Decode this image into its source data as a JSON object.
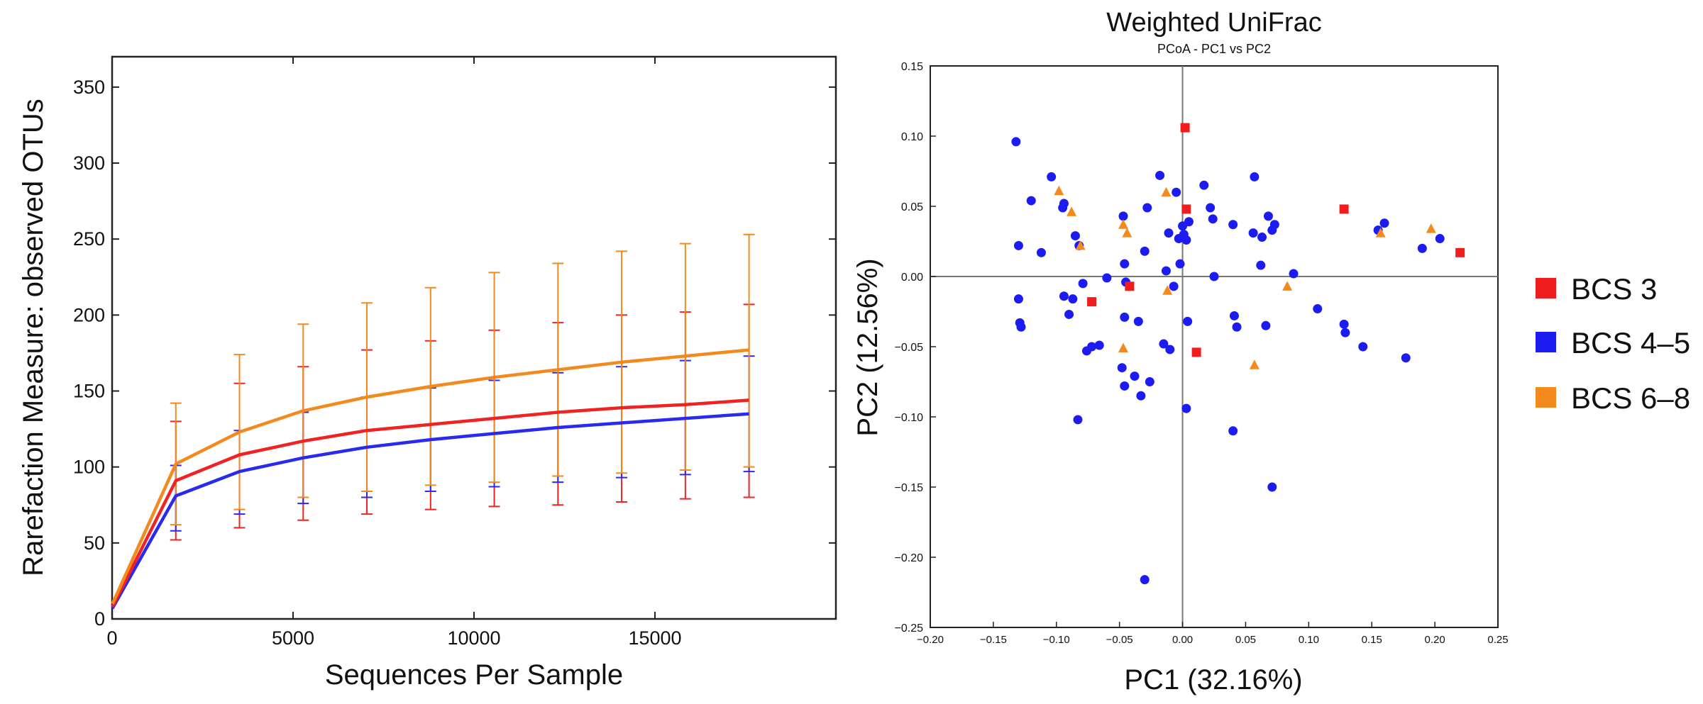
{
  "chart_data": [
    {
      "type": "line",
      "title": "",
      "xlabel": "Sequences Per Sample",
      "ylabel": "Rarefaction Measure: observed OTUs",
      "xlim": [
        0,
        20000
      ],
      "ylim": [
        0,
        370
      ],
      "xticks": [
        0,
        5000,
        10000,
        15000
      ],
      "yticks": [
        0,
        50,
        100,
        150,
        200,
        250,
        300,
        350
      ],
      "x": [
        10,
        1760,
        3520,
        5280,
        7040,
        8800,
        10560,
        12320,
        14080,
        15840,
        17600
      ],
      "series": [
        {
          "name": "BCS 6–8",
          "color": "#f28a1e",
          "values": [
            10,
            102,
            123,
            137,
            146,
            153,
            159,
            164,
            169,
            173,
            177
          ],
          "error_upper": [
            10,
            142,
            174,
            194,
            208,
            218,
            228,
            234,
            242,
            247,
            253
          ],
          "error_lower": [
            10,
            62,
            72,
            80,
            84,
            88,
            90,
            94,
            96,
            98,
            100
          ]
        },
        {
          "name": "BCS 3",
          "color": "#ef2323",
          "values": [
            8,
            91,
            108,
            117,
            124,
            128,
            132,
            136,
            139,
            141,
            144
          ],
          "error_upper": [
            8,
            130,
            155,
            166,
            177,
            183,
            190,
            195,
            200,
            202,
            207
          ],
          "error_lower": [
            8,
            52,
            60,
            65,
            69,
            72,
            74,
            75,
            77,
            79,
            80
          ]
        },
        {
          "name": "BCS 4–5",
          "color": "#2a2aee",
          "values": [
            7,
            81,
            97,
            106,
            113,
            118,
            122,
            126,
            129,
            132,
            135
          ],
          "error_upper": [
            7,
            101,
            124,
            136,
            146,
            152,
            157,
            162,
            166,
            170,
            173
          ],
          "error_lower": [
            7,
            58,
            69,
            76,
            80,
            84,
            87,
            90,
            93,
            95,
            97
          ]
        }
      ]
    },
    {
      "type": "scatter",
      "title": "Weighted UniFrac",
      "subtitle": "PCoA - PC1 vs PC2",
      "xlabel": "PC1 (32.16%)",
      "ylabel": "PC2 (12.56%)",
      "xlim": [
        -0.2,
        0.25
      ],
      "ylim": [
        -0.25,
        0.15
      ],
      "xticks": [
        -0.2,
        -0.15,
        -0.1,
        -0.05,
        0,
        0.05,
        0.1,
        0.15,
        0.2,
        0.25
      ],
      "xtick_labels": [
        "−0.20",
        "−0.15",
        "−0.10",
        "−0.05",
        "0.00",
        "0.05",
        "0.10",
        "0.15",
        "0.20",
        "0.25"
      ],
      "yticks": [
        0.15,
        0.1,
        0.05,
        0,
        -0.05,
        -0.1,
        -0.15,
        -0.2,
        -0.25
      ],
      "ytick_labels": [
        "0.15",
        "0.10",
        "0.05",
        "0.00",
        "−0.05",
        "−0.10",
        "−0.15",
        "−0.20",
        "−0.25"
      ],
      "legend_position": "right",
      "series": [
        {
          "name": "BCS 3",
          "color": "#ef1d1d",
          "marker": "square",
          "points": [
            [
              0.002,
              0.106
            ],
            [
              0.003,
              0.048
            ],
            [
              0.128,
              0.048
            ],
            [
              0.22,
              0.017
            ],
            [
              -0.072,
              -0.018
            ],
            [
              -0.042,
              -0.007
            ],
            [
              0.011,
              -0.054
            ]
          ]
        },
        {
          "name": "BCS 4–5",
          "color": "#1c1cf0",
          "marker": "circle",
          "points": [
            [
              -0.132,
              0.096
            ],
            [
              -0.13,
              0.022
            ],
            [
              -0.13,
              -0.016
            ],
            [
              -0.129,
              -0.033
            ],
            [
              -0.128,
              -0.036
            ],
            [
              -0.12,
              0.054
            ],
            [
              -0.112,
              0.017
            ],
            [
              -0.104,
              0.071
            ],
            [
              -0.095,
              0.049
            ],
            [
              -0.094,
              0.052
            ],
            [
              -0.094,
              -0.014
            ],
            [
              -0.09,
              -0.027
            ],
            [
              -0.087,
              -0.016
            ],
            [
              -0.085,
              0.029
            ],
            [
              -0.082,
              0.022
            ],
            [
              -0.079,
              -0.005
            ],
            [
              -0.076,
              -0.053
            ],
            [
              -0.072,
              -0.05
            ],
            [
              -0.066,
              -0.049
            ],
            [
              -0.06,
              -0.001
            ],
            [
              -0.047,
              0.043
            ],
            [
              -0.046,
              0.009
            ],
            [
              -0.046,
              -0.029
            ],
            [
              -0.045,
              -0.004
            ],
            [
              -0.048,
              -0.065
            ],
            [
              -0.046,
              -0.078
            ],
            [
              -0.038,
              -0.071
            ],
            [
              -0.035,
              -0.032
            ],
            [
              -0.033,
              -0.085
            ],
            [
              -0.03,
              0.018
            ],
            [
              -0.028,
              0.049
            ],
            [
              -0.026,
              -0.075
            ],
            [
              -0.018,
              0.072
            ],
            [
              -0.015,
              -0.048
            ],
            [
              -0.013,
              0.004
            ],
            [
              -0.011,
              0.031
            ],
            [
              -0.01,
              -0.052
            ],
            [
              -0.007,
              -0.007
            ],
            [
              -0.005,
              0.06
            ],
            [
              -0.003,
              0.027
            ],
            [
              -0.002,
              0.009
            ],
            [
              0,
              0.036
            ],
            [
              0.001,
              0.03
            ],
            [
              0.003,
              0.026
            ],
            [
              0.004,
              -0.032
            ],
            [
              0.003,
              -0.094
            ],
            [
              0.005,
              0.039
            ],
            [
              0.017,
              0.065
            ],
            [
              0.022,
              0.049
            ],
            [
              0.024,
              0.041
            ],
            [
              0.025,
              0
            ],
            [
              0.04,
              0.037
            ],
            [
              0.041,
              -0.028
            ],
            [
              0.043,
              -0.036
            ],
            [
              0.04,
              -0.11
            ],
            [
              0.056,
              0.031
            ],
            [
              0.057,
              0.071
            ],
            [
              0.062,
              0.008
            ],
            [
              0.063,
              0.028
            ],
            [
              0.066,
              -0.035
            ],
            [
              0.068,
              0.043
            ],
            [
              0.071,
              0.033
            ],
            [
              0.073,
              0.037
            ],
            [
              0.071,
              -0.15
            ],
            [
              0.088,
              0.002
            ],
            [
              0.107,
              -0.023
            ],
            [
              0.128,
              -0.034
            ],
            [
              0.129,
              -0.04
            ],
            [
              0.143,
              -0.05
            ],
            [
              0.155,
              0.033
            ],
            [
              0.16,
              0.038
            ],
            [
              0.177,
              -0.058
            ],
            [
              0.19,
              0.02
            ],
            [
              0.204,
              0.027
            ],
            [
              -0.03,
              -0.216
            ],
            [
              -0.083,
              -0.102
            ]
          ]
        },
        {
          "name": "BCS 6–8",
          "color": "#f28a1e",
          "marker": "triangle",
          "points": [
            [
              -0.098,
              0.061
            ],
            [
              -0.088,
              0.046
            ],
            [
              -0.081,
              0.022
            ],
            [
              -0.047,
              0.037
            ],
            [
              -0.044,
              0.031
            ],
            [
              -0.013,
              0.06
            ],
            [
              -0.012,
              -0.01
            ],
            [
              -0.047,
              -0.051
            ],
            [
              0.083,
              -0.007
            ],
            [
              0.057,
              -0.063
            ],
            [
              0.157,
              0.031
            ],
            [
              0.197,
              0.034
            ]
          ]
        }
      ]
    }
  ]
}
